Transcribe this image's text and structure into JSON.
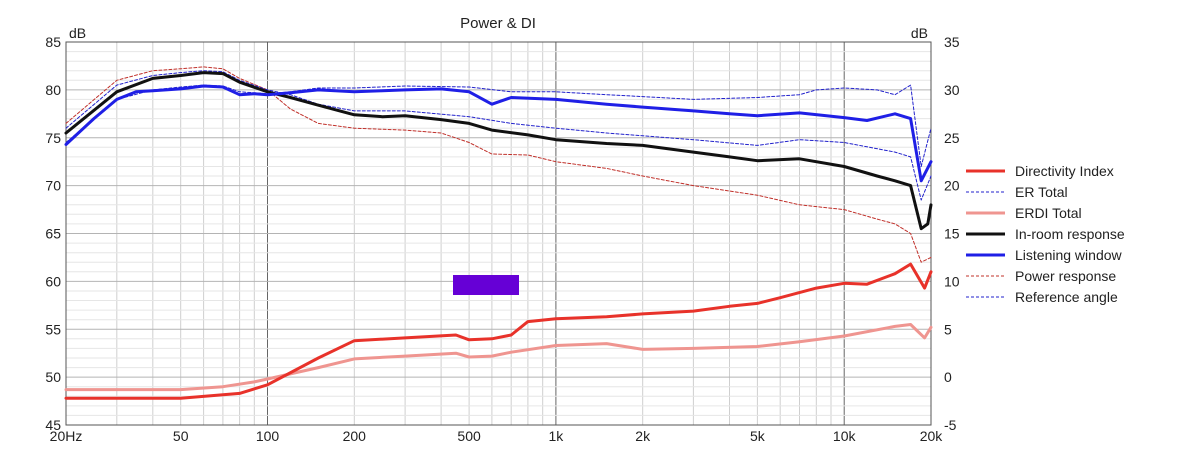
{
  "chart_data": {
    "type": "line",
    "title": "Power & DI",
    "xscale": "log",
    "xlim": [
      20,
      20000
    ],
    "ylim_left": [
      45,
      85
    ],
    "ylim_right": [
      -5,
      35
    ],
    "left_unit": "dB",
    "right_unit": "dB",
    "x_ticks": [
      {
        "value": 20,
        "label": "20Hz"
      },
      {
        "value": 50,
        "label": "50"
      },
      {
        "value": 100,
        "label": "100"
      },
      {
        "value": 200,
        "label": "200"
      },
      {
        "value": 500,
        "label": "500"
      },
      {
        "value": 1000,
        "label": "1k"
      },
      {
        "value": 2000,
        "label": "2k"
      },
      {
        "value": 5000,
        "label": "5k"
      },
      {
        "value": 10000,
        "label": "10k"
      },
      {
        "value": 20000,
        "label": "20k"
      }
    ],
    "left_ticks": [
      "45",
      "50",
      "55",
      "60",
      "65",
      "70",
      "75",
      "80",
      "85"
    ],
    "right_ticks": [
      "-5",
      "0",
      "5",
      "10",
      "15",
      "20",
      "25",
      "30",
      "35"
    ],
    "grid": true,
    "legend_position": "right",
    "series": [
      {
        "name": "Directivity Index",
        "axis": "right",
        "color": "#e8322a",
        "style": "solid",
        "width": 3,
        "x": [
          20,
          50,
          80,
          100,
          150,
          200,
          300,
          450,
          500,
          600,
          700,
          800,
          1000,
          1500,
          2000,
          3000,
          4000,
          5000,
          6000,
          8000,
          10000,
          12000,
          15000,
          17000,
          19000,
          20000
        ],
        "y": [
          -2.2,
          -2.2,
          -1.7,
          -0.8,
          2.0,
          3.8,
          4.1,
          4.4,
          3.9,
          4.0,
          4.4,
          5.8,
          6.1,
          6.3,
          6.6,
          6.9,
          7.4,
          7.7,
          8.3,
          9.3,
          9.8,
          9.7,
          10.8,
          11.8,
          9.3,
          11.0
        ]
      },
      {
        "name": "ER Total",
        "axis": "left",
        "color": "#2222cc",
        "style": "dashed",
        "width": 1,
        "x": [
          20,
          30,
          40,
          50,
          60,
          70,
          80,
          100,
          120,
          150,
          200,
          300,
          500,
          700,
          1000,
          1500,
          2000,
          3000,
          5000,
          7000,
          10000,
          15000,
          17000,
          18500,
          20000
        ],
        "y": [
          76.0,
          80.5,
          81.5,
          81.8,
          82.0,
          81.9,
          81.0,
          80.0,
          79.5,
          78.5,
          77.8,
          77.8,
          77.2,
          76.5,
          76.0,
          75.5,
          75.2,
          74.8,
          74.2,
          74.8,
          74.5,
          73.5,
          73.0,
          68.5,
          71.0
        ]
      },
      {
        "name": "ERDI Total",
        "axis": "right",
        "color": "#ef9590",
        "style": "solid",
        "width": 3,
        "x": [
          20,
          50,
          70,
          90,
          100,
          150,
          200,
          300,
          450,
          500,
          600,
          700,
          1000,
          1500,
          2000,
          3000,
          5000,
          7000,
          10000,
          15000,
          17000,
          19000,
          20000
        ],
        "y": [
          -1.3,
          -1.3,
          -1.0,
          -0.5,
          -0.2,
          1.0,
          1.9,
          2.2,
          2.5,
          2.1,
          2.2,
          2.6,
          3.3,
          3.5,
          2.9,
          3.0,
          3.2,
          3.7,
          4.3,
          5.3,
          5.5,
          4.1,
          5.2
        ]
      },
      {
        "name": "In-room response",
        "axis": "left",
        "color": "#111111",
        "style": "solid",
        "width": 3,
        "x": [
          20,
          30,
          40,
          50,
          60,
          70,
          80,
          100,
          120,
          150,
          200,
          250,
          300,
          400,
          500,
          600,
          800,
          1000,
          1500,
          2000,
          3000,
          4000,
          5000,
          7000,
          10000,
          13000,
          15000,
          17000,
          18500,
          19500,
          20000
        ],
        "y": [
          75.5,
          79.8,
          81.2,
          81.5,
          81.8,
          81.7,
          80.8,
          79.8,
          79.2,
          78.4,
          77.4,
          77.2,
          77.3,
          76.9,
          76.5,
          75.8,
          75.3,
          74.8,
          74.4,
          74.2,
          73.5,
          73.0,
          72.6,
          72.8,
          72.0,
          71.0,
          70.5,
          70.0,
          65.5,
          66.0,
          68.0
        ]
      },
      {
        "name": "Listening window",
        "axis": "left",
        "color": "#1f1fe6",
        "style": "solid",
        "width": 3,
        "x": [
          20,
          25,
          30,
          35,
          40,
          50,
          60,
          70,
          80,
          90,
          100,
          120,
          150,
          200,
          250,
          300,
          400,
          500,
          600,
          700,
          1000,
          1500,
          2000,
          3000,
          4000,
          5000,
          7000,
          10000,
          12000,
          15000,
          17000,
          18500,
          20000
        ],
        "y": [
          74.3,
          77.0,
          79.0,
          79.8,
          79.9,
          80.1,
          80.4,
          80.3,
          79.5,
          79.6,
          79.5,
          79.7,
          80.0,
          79.8,
          79.9,
          80.0,
          80.1,
          79.8,
          78.5,
          79.2,
          79.0,
          78.5,
          78.2,
          77.8,
          77.5,
          77.3,
          77.6,
          77.1,
          76.8,
          77.5,
          77.0,
          70.5,
          72.5
        ]
      },
      {
        "name": "Power response",
        "axis": "left",
        "color": "#c0302a",
        "style": "dashed",
        "width": 1,
        "x": [
          20,
          30,
          40,
          50,
          60,
          70,
          80,
          100,
          120,
          150,
          200,
          300,
          400,
          500,
          600,
          800,
          1000,
          1500,
          2000,
          3000,
          5000,
          7000,
          10000,
          13000,
          15000,
          17000,
          18500,
          20000
        ],
        "y": [
          76.5,
          81.0,
          82.0,
          82.2,
          82.4,
          82.2,
          81.2,
          80.0,
          78.0,
          76.5,
          76.0,
          75.8,
          75.5,
          74.5,
          73.3,
          73.2,
          72.5,
          71.8,
          71.0,
          70.0,
          69.0,
          68.0,
          67.5,
          66.5,
          66.0,
          65.0,
          62.0,
          62.5
        ]
      },
      {
        "name": "Reference angle",
        "axis": "left",
        "color": "#2222cc",
        "style": "dashed",
        "width": 1,
        "x": [
          20,
          30,
          40,
          50,
          60,
          70,
          80,
          100,
          120,
          150,
          200,
          300,
          500,
          700,
          1000,
          1500,
          2000,
          3000,
          5000,
          7000,
          8000,
          10000,
          13000,
          15000,
          17000,
          18500,
          20000
        ],
        "y": [
          74.5,
          79.0,
          80.0,
          80.3,
          80.5,
          80.4,
          79.8,
          79.6,
          79.8,
          80.2,
          80.2,
          80.4,
          80.3,
          79.8,
          79.8,
          79.5,
          79.3,
          79.0,
          79.2,
          79.5,
          80.0,
          80.2,
          80.0,
          79.5,
          80.5,
          72.0,
          76.0
        ]
      }
    ]
  }
}
